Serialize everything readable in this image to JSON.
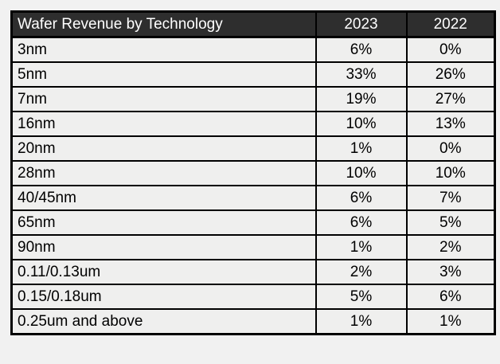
{
  "colors": {
    "page_bg": "#f1f1f1",
    "header_bg": "#2e2e2e",
    "header_text": "#ffffff",
    "cell_bg": "#efefee",
    "border": "#000000"
  },
  "table": {
    "title": "Wafer Revenue by Technology",
    "columns": [
      "2023",
      "2022"
    ],
    "rows": [
      {
        "label": "3nm",
        "y2023": "6%",
        "y2022": "0%"
      },
      {
        "label": "5nm",
        "y2023": "33%",
        "y2022": "26%"
      },
      {
        "label": "7nm",
        "y2023": "19%",
        "y2022": "27%"
      },
      {
        "label": "16nm",
        "y2023": "10%",
        "y2022": "13%"
      },
      {
        "label": "20nm",
        "y2023": "1%",
        "y2022": "0%"
      },
      {
        "label": "28nm",
        "y2023": "10%",
        "y2022": "10%"
      },
      {
        "label": "40/45nm",
        "y2023": "6%",
        "y2022": "7%"
      },
      {
        "label": "65nm",
        "y2023": "6%",
        "y2022": "5%"
      },
      {
        "label": "90nm",
        "y2023": "1%",
        "y2022": "2%"
      },
      {
        "label": "0.11/0.13um",
        "y2023": "2%",
        "y2022": "3%"
      },
      {
        "label": "0.15/0.18um",
        "y2023": "5%",
        "y2022": "6%"
      },
      {
        "label": "0.25um and above",
        "y2023": "1%",
        "y2022": "1%"
      }
    ]
  },
  "chart_data": {
    "type": "table",
    "title": "Wafer Revenue by Technology",
    "categories": [
      "3nm",
      "5nm",
      "7nm",
      "16nm",
      "20nm",
      "28nm",
      "40/45nm",
      "65nm",
      "90nm",
      "0.11/0.13um",
      "0.15/0.18um",
      "0.25um and above"
    ],
    "series": [
      {
        "name": "2023",
        "values": [
          6,
          33,
          19,
          10,
          1,
          10,
          6,
          6,
          1,
          2,
          5,
          1
        ]
      },
      {
        "name": "2022",
        "values": [
          0,
          26,
          27,
          13,
          0,
          10,
          7,
          5,
          2,
          3,
          6,
          1
        ]
      }
    ],
    "units": "percent"
  }
}
